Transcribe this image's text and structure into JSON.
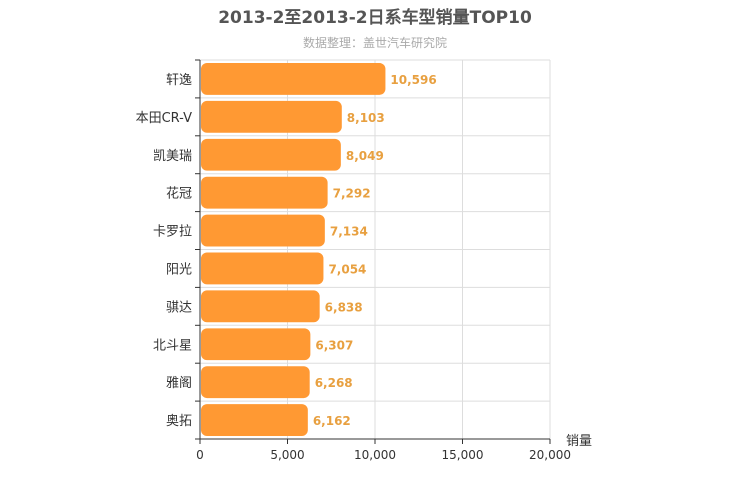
{
  "chart_data": {
    "type": "bar",
    "orientation": "horizontal",
    "title": "2013-2至2013-2日系车型销量TOP10",
    "subtitle": "数据整理：盖世汽车研究院",
    "xlabel": "销量",
    "ylabel": "",
    "xlim": [
      0,
      20000
    ],
    "x_ticks": [
      0,
      5000,
      10000,
      15000,
      20000
    ],
    "x_tick_labels": [
      "0",
      "5,000",
      "10,000",
      "15,000",
      "20,000"
    ],
    "grid": true,
    "categories": [
      "轩逸",
      "本田CR-V",
      "凯美瑞",
      "花冠",
      "卡罗拉",
      "阳光",
      "骐达",
      "北斗星",
      "雅阁",
      "奥拓"
    ],
    "values": [
      10596,
      8103,
      8049,
      7292,
      7134,
      7054,
      6838,
      6307,
      6268,
      6162
    ],
    "value_labels": [
      "10,596",
      "8,103",
      "8,049",
      "7,292",
      "7,134",
      "7,054",
      "6,838",
      "6,307",
      "6,268",
      "6,162"
    ],
    "colors": {
      "bar": "#ff9933",
      "label": "#e8a040",
      "grid": "#dddddd",
      "axis": "#333333"
    }
  }
}
